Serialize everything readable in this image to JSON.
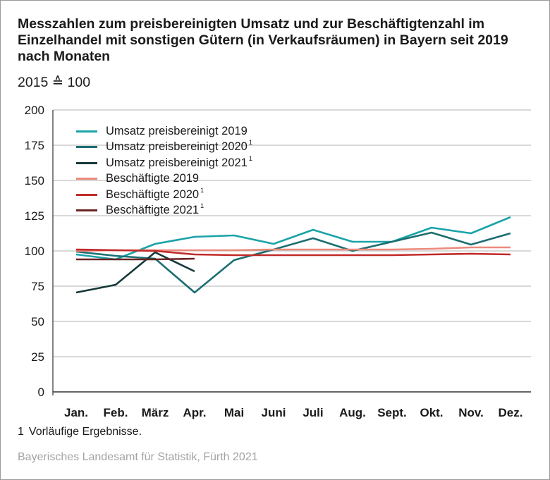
{
  "header": {
    "title": "Messzahlen zum preisbereinigten Umsatz und zur Beschäftigten­zahl im Einzelhandel mit sonstigen Gütern (in Verkaufsräumen) in Bayern seit 2019 nach Monaten",
    "subtitle": "2015 ≙ 100"
  },
  "footnote": {
    "number": "1",
    "text": "Vorläufige Ergebnisse."
  },
  "source": "Bayerisches Landesamt für Statistik, Fürth 2021",
  "chart_data": {
    "type": "line",
    "categories": [
      "Jan.",
      "Feb.",
      "März",
      "Apr.",
      "Mai",
      "Juni",
      "Juli",
      "Aug.",
      "Sept.",
      "Okt.",
      "Nov.",
      "Dez."
    ],
    "ylim": [
      0,
      200
    ],
    "yticks": [
      0,
      25,
      50,
      75,
      100,
      125,
      150,
      175,
      200
    ],
    "grid": true,
    "legend_position": "top-left",
    "series": [
      {
        "name": "Umsatz preisbereinigt 2019",
        "footnote": "",
        "color": "#1aa3a8",
        "values": [
          97.5,
          94,
          105,
          110,
          111,
          105,
          115,
          106.5,
          106.5,
          116.5,
          112.5,
          124
        ]
      },
      {
        "name": "Umsatz preisbereinigt 2020",
        "footnote": "1",
        "color": "#1c6e72",
        "values": [
          99.5,
          96.5,
          94.5,
          70.5,
          93.5,
          101,
          109,
          100,
          106.5,
          113,
          104.5,
          112.5
        ]
      },
      {
        "name": "Umsatz preisbereinigt 2021",
        "footnote": "1",
        "color": "#17393b",
        "values": [
          70.5,
          76,
          99,
          85.5,
          null,
          null,
          null,
          null,
          null,
          null,
          null,
          null
        ]
      },
      {
        "name": "Beschäftigte 2019",
        "footnote": "",
        "color": "#eb8a7c",
        "values": [
          100,
          100.5,
          100.5,
          100.5,
          100.5,
          101,
          101,
          101,
          101,
          101.5,
          102.5,
          102.5
        ]
      },
      {
        "name": "Beschäftigte 2020",
        "footnote": "1",
        "color": "#c12a2a",
        "values": [
          101,
          100.5,
          100,
          97.5,
          97,
          97,
          97,
          97,
          97,
          97.5,
          98,
          97.5
        ]
      },
      {
        "name": "Beschäftigte 2021",
        "footnote": "1",
        "color": "#6b2222",
        "values": [
          94,
          94,
          94,
          94.5,
          null,
          null,
          null,
          null,
          null,
          null,
          null,
          null
        ]
      }
    ]
  }
}
